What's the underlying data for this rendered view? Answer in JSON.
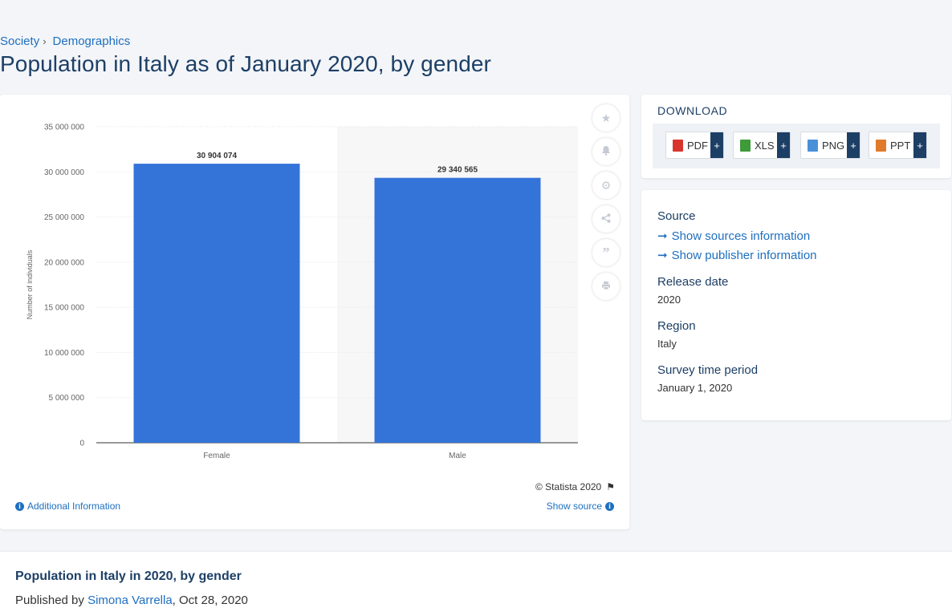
{
  "breadcrumb": {
    "items": [
      "Society",
      "Demographics"
    ],
    "separator": "›"
  },
  "page_title": "Population in Italy as of January 2020, by gender",
  "chart_data": {
    "type": "bar",
    "categories": [
      "Female",
      "Male"
    ],
    "values": [
      30904074,
      29340565
    ],
    "data_labels": [
      "30 904 074",
      "29 340 565"
    ],
    "ylabel": "Number of individuals",
    "ylim": [
      0,
      35000000
    ],
    "yticks": [
      0,
      5000000,
      10000000,
      15000000,
      20000000,
      25000000,
      30000000,
      35000000
    ],
    "ytick_labels": [
      "0",
      "5 000 000",
      "10 000 000",
      "15 000 000",
      "20 000 000",
      "25 000 000",
      "30 000 000",
      "35 000 000"
    ],
    "grid": true,
    "bar_color": "#3474d9"
  },
  "tools": {
    "icons": [
      "star-icon",
      "bell-icon",
      "gear-icon",
      "share-icon",
      "quote-icon",
      "print-icon"
    ]
  },
  "chart_footer": {
    "credit": "© Statista 2020",
    "additional_info": "Additional Information",
    "show_source": "Show source"
  },
  "download": {
    "title": "DOWNLOAD",
    "buttons": [
      {
        "label": "PDF",
        "icon": "pdf-file-icon",
        "color": "#d9342b"
      },
      {
        "label": "XLS",
        "icon": "xls-file-icon",
        "color": "#3f9a3a"
      },
      {
        "label": "PNG",
        "icon": "png-file-icon",
        "color": "#4a90d9"
      },
      {
        "label": "PPT",
        "icon": "ppt-file-icon",
        "color": "#e07b2a"
      }
    ],
    "plus": "+"
  },
  "info": {
    "source_label": "Source",
    "show_sources": "Show sources information",
    "show_publisher": "Show publisher information",
    "release_date_label": "Release date",
    "release_date": "2020",
    "region_label": "Region",
    "region": "Italy",
    "survey_period_label": "Survey time period",
    "survey_period": "January 1, 2020"
  },
  "bottom": {
    "title": "Population in Italy in 2020, by gender",
    "published_by": "Published by",
    "author": "Simona Varrella",
    "date": ", Oct 28, 2020"
  },
  "colors": {
    "accent": "#1f6fbf",
    "heading": "#1d3f66",
    "background": "#f3f5f8"
  }
}
